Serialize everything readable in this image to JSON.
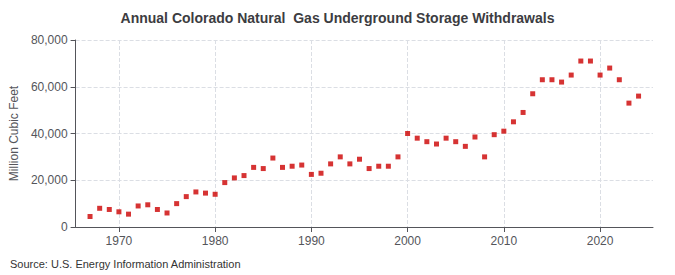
{
  "chart_data": {
    "type": "scatter",
    "title": "Annual Colorado Natural  Gas Underground Storage Withdrawals",
    "ylabel": "Million Cubic Feet",
    "source": "Source: U.S. Energy Information Administration",
    "color": "#cc0000",
    "marker": "square",
    "grid": true,
    "xlim": [
      1965.5,
      2025.5
    ],
    "xticks": [
      1970,
      1980,
      1990,
      2000,
      2010,
      2020
    ],
    "ylim": [
      0,
      80000
    ],
    "yticks": [
      0,
      {
        "value": 20000,
        "label": "20,000"
      },
      {
        "value": 40000,
        "label": "40,000"
      },
      {
        "value": 60000,
        "label": "60,000"
      },
      {
        "value": 80000,
        "label": "80,000"
      }
    ],
    "x": [
      1967,
      1968,
      1969,
      1970,
      1971,
      1972,
      1973,
      1974,
      1975,
      1976,
      1977,
      1978,
      1979,
      1980,
      1981,
      1982,
      1983,
      1984,
      1985,
      1986,
      1987,
      1988,
      1989,
      1990,
      1991,
      1992,
      1993,
      1994,
      1995,
      1996,
      1997,
      1998,
      1999,
      2000,
      2001,
      2002,
      2003,
      2004,
      2005,
      2006,
      2007,
      2008,
      2009,
      2010,
      2011,
      2012,
      2013,
      2014,
      2015,
      2016,
      2017,
      2018,
      2019,
      2020,
      2021,
      2022,
      2023,
      2024
    ],
    "values": [
      4500,
      8000,
      7500,
      6500,
      5500,
      9000,
      9500,
      7500,
      6000,
      10000,
      13000,
      15000,
      14500,
      14000,
      19000,
      21000,
      22000,
      25500,
      25000,
      29500,
      25500,
      26000,
      26500,
      22500,
      23000,
      27000,
      30000,
      27000,
      29000,
      25000,
      26000,
      26000,
      30000,
      40000,
      38000,
      36500,
      35500,
      38000,
      36500,
      34500,
      38500,
      30000,
      39500,
      41000,
      45000,
      49000,
      57000,
      63000,
      63000,
      62000,
      65000,
      71000,
      71000,
      65000,
      68000,
      63000,
      53000,
      56000
    ]
  }
}
